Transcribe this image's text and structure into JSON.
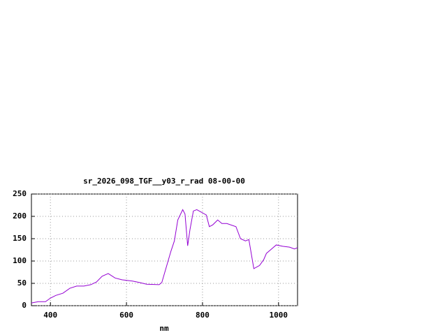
{
  "chart_data": {
    "type": "line",
    "title": "sr_2026_098_TGF__y03_r_rad 08-00-00",
    "x_label": "nm",
    "x": [
      350,
      368,
      387,
      400,
      414,
      433,
      451,
      469,
      488,
      506,
      521,
      536,
      552,
      570,
      588,
      616,
      634,
      653,
      686,
      693,
      717,
      726,
      735,
      748,
      754,
      761,
      767,
      776,
      785,
      800,
      810,
      818,
      827,
      840,
      851,
      864,
      888,
      900,
      913,
      922,
      935,
      950,
      961,
      968,
      983,
      994,
      1011,
      1029,
      1042,
      1050
    ],
    "series": [
      {
        "name": "sr_2026_098_TGF__y03_r_rad",
        "color": "#9400d3",
        "values": [
          6,
          9,
          9,
          17,
          23,
          28,
          39,
          44,
          44,
          47,
          53,
          66,
          72,
          62,
          58,
          55,
          52,
          48,
          47,
          52,
          122,
          145,
          192,
          215,
          205,
          134,
          170,
          212,
          215,
          208,
          203,
          177,
          181,
          192,
          184,
          184,
          177,
          150,
          145,
          148,
          83,
          90,
          103,
          117,
          128,
          136,
          133,
          131,
          127,
          130
        ]
      }
    ],
    "xlim": [
      350,
      1050
    ],
    "ylim": [
      0,
      250
    ],
    "xticks": [
      400,
      600,
      800,
      1000
    ],
    "yticks": [
      0,
      50,
      100,
      150,
      200,
      250
    ],
    "grid": true
  }
}
